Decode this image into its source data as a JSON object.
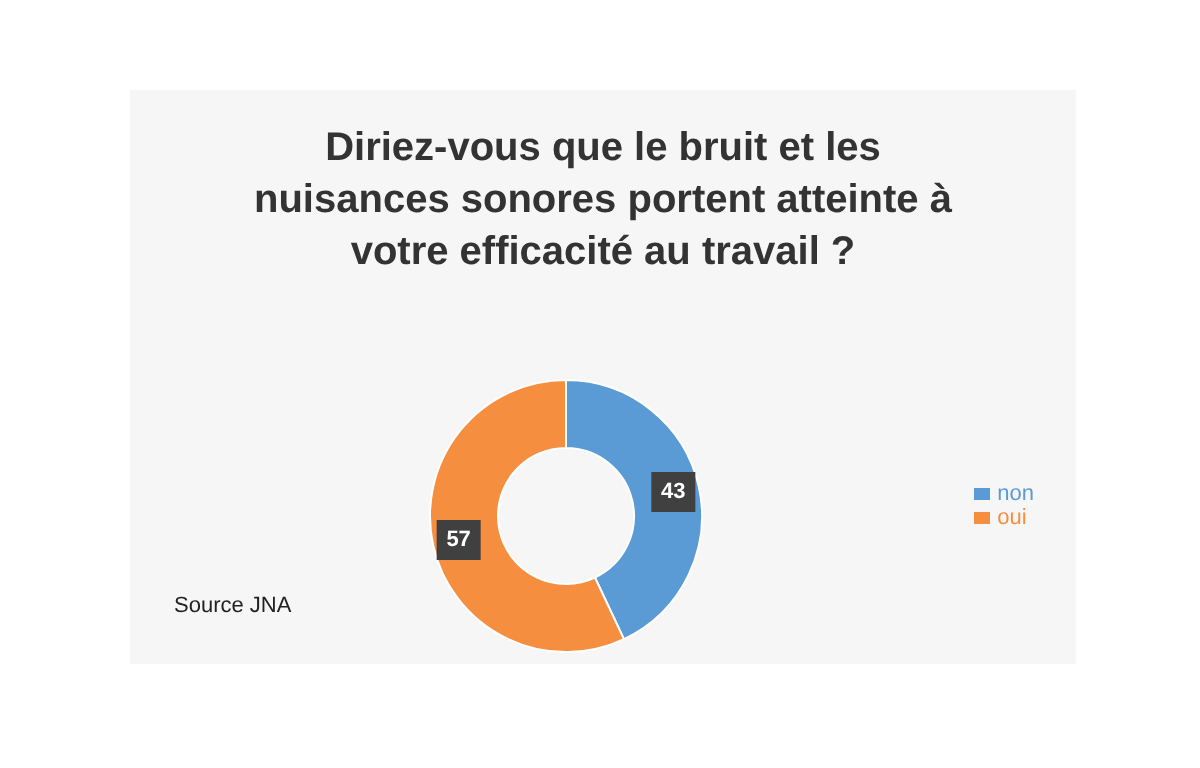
{
  "chart_data": {
    "type": "donut",
    "title": "Diriez-vous que le bruit et les nuisances sonores portent atteinte à votre efficacité au travail ?",
    "categories": [
      "non",
      "oui"
    ],
    "values": [
      43,
      57
    ],
    "colors": [
      "#5b9bd5",
      "#f68e40"
    ],
    "data_labels": true,
    "legend": "right",
    "annotations": [
      "Source JNA"
    ]
  }
}
